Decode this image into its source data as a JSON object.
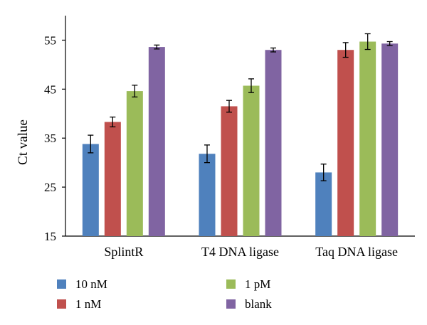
{
  "chart_data": {
    "type": "bar",
    "title": "",
    "xlabel": "",
    "ylabel": "Ct value",
    "ylim": [
      15,
      60
    ],
    "yticks": [
      15,
      25,
      35,
      45,
      55
    ],
    "grid": false,
    "legend_position": "bottom",
    "categories": [
      "SplintR",
      "T4 DNA ligase",
      "Taq DNA ligase"
    ],
    "series": [
      {
        "name": "10 nM",
        "color": "#4f81bd",
        "values": [
          33.8,
          31.8,
          28.0
        ],
        "errors": [
          1.8,
          1.8,
          1.7
        ]
      },
      {
        "name": "1 nM",
        "color": "#c0504d",
        "values": [
          38.3,
          41.5,
          53.0
        ],
        "errors": [
          1.0,
          1.2,
          1.5
        ]
      },
      {
        "name": "1 pM",
        "color": "#9bbb59",
        "values": [
          44.6,
          45.7,
          54.7
        ],
        "errors": [
          1.2,
          1.4,
          1.6
        ]
      },
      {
        "name": "blank",
        "color": "#8064a2",
        "values": [
          53.6,
          53.0,
          54.3
        ],
        "errors": [
          0.4,
          0.4,
          0.4
        ]
      }
    ]
  }
}
